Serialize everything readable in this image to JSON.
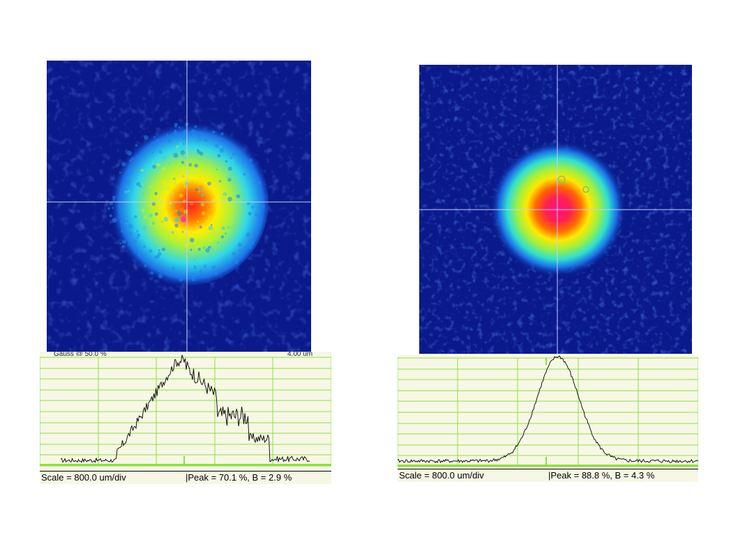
{
  "panels": [
    {
      "id": "left",
      "profile": {
        "scale_text": "Scale = 800.0 um/div",
        "peak_text": "|Peak = 70.1 %,  B = 2.9 %",
        "peak_percent": 70.1,
        "baseline_percent": 2.9
      },
      "top_strip_left": "Gauss @ 50.0 %",
      "top_strip_right": "4.00 um"
    },
    {
      "id": "right",
      "profile": {
        "scale_text": "Scale = 800.0 um/div",
        "peak_text": "|Peak = 88.8 %,  B = 4.3 %",
        "peak_percent": 88.8,
        "baseline_percent": 4.3
      }
    }
  ],
  "colors": {
    "background_field": "#0a1a8a",
    "crosshair": "#c8d0ff",
    "grid": "#8ee03a",
    "profile_bg": "#f7f7e6",
    "trace": "#000000"
  }
}
